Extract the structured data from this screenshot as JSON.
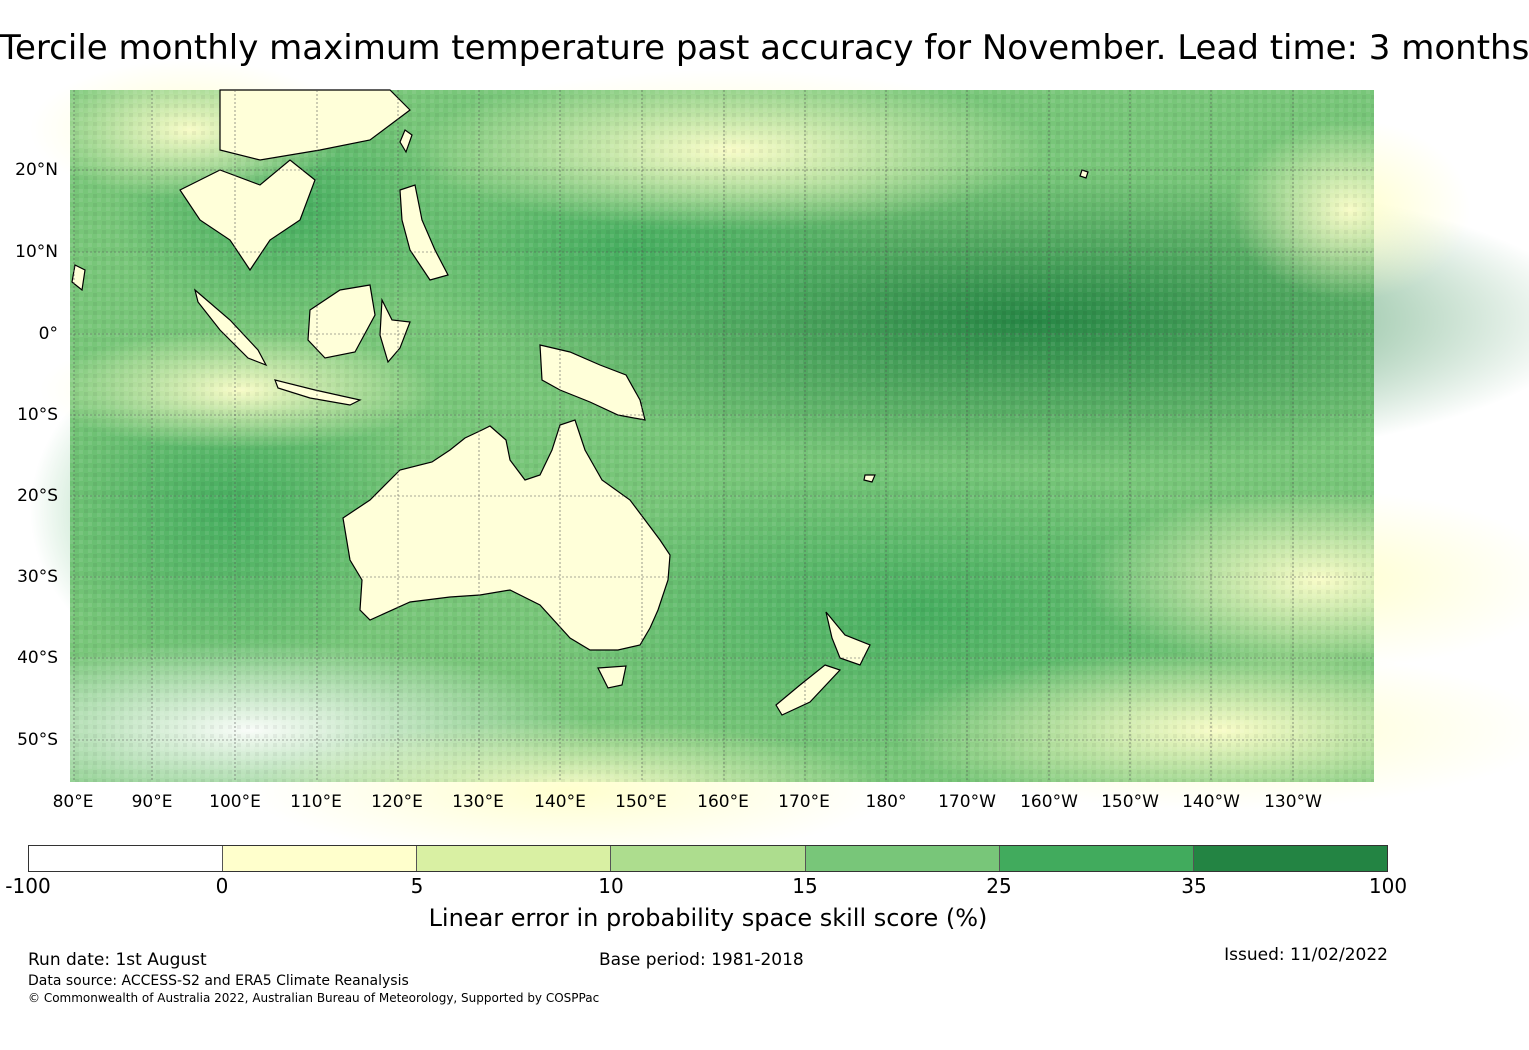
{
  "title": "Tercile monthly maximum temperature past accuracy for November. Lead time: 3 months",
  "map": {
    "lat_labels": [
      "20°N",
      "10°N",
      "0°",
      "10°S",
      "20°S",
      "30°S",
      "40°S",
      "50°S"
    ],
    "lon_labels": [
      "80°E",
      "90°E",
      "100°E",
      "110°E",
      "120°E",
      "130°E",
      "140°E",
      "150°E",
      "160°E",
      "170°E",
      "180°",
      "170°W",
      "160°W",
      "150°W",
      "140°W",
      "130°W"
    ]
  },
  "colorbar": {
    "ticks": [
      "-100",
      "0",
      "5",
      "10",
      "15",
      "25",
      "35",
      "100"
    ],
    "colors": [
      "#ffffff",
      "#ffffcc",
      "#d9f0a3",
      "#addd8e",
      "#78c679",
      "#41ab5d",
      "#238443"
    ],
    "label": "Linear error in probability space skill score (%)"
  },
  "footer": {
    "run_date": "Run date: 1st August",
    "base_period": "Base period: 1981-2018",
    "issued": "Issued: 11/02/2022",
    "data_source": "Data source: ACCESS-S2 and ERA5 Climate Reanalysis",
    "copyright": "© Commonwealth of Australia 2022, Australian Bureau of Meteorology, Supported by COSPPac"
  }
}
